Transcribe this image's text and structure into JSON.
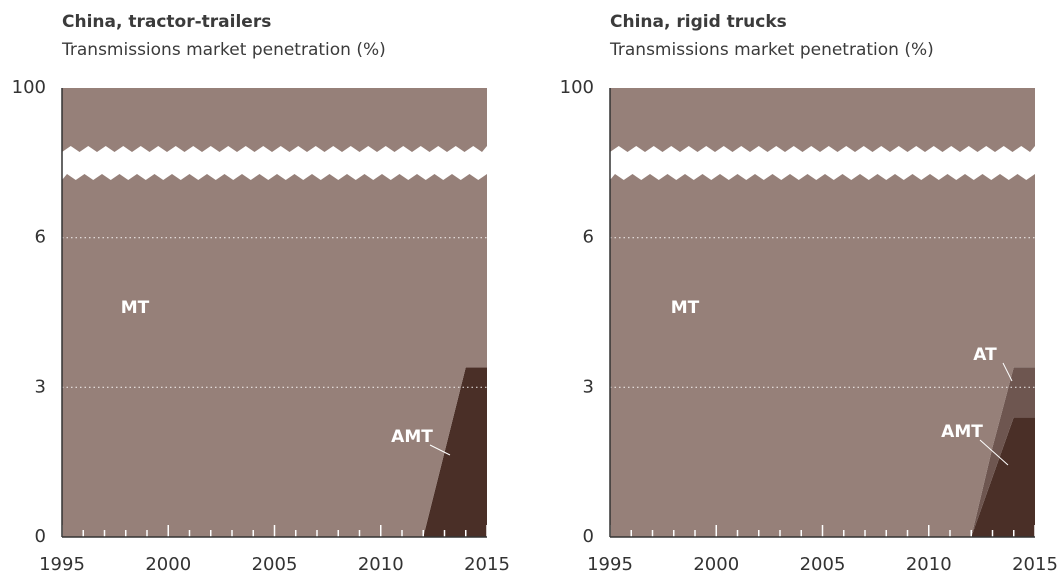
{
  "chart_data": [
    {
      "type": "area",
      "title": "China, tractor-trailers",
      "subtitle": "Transmissions market penetration (%)",
      "x": [
        1995,
        1996,
        1997,
        1998,
        1999,
        2000,
        2001,
        2002,
        2003,
        2004,
        2005,
        2006,
        2007,
        2008,
        2009,
        2010,
        2011,
        2012,
        2013,
        2014,
        2015
      ],
      "xlim": [
        1995,
        2015
      ],
      "xticks": [
        1995,
        2000,
        2005,
        2010,
        2015
      ],
      "ylim": [
        0,
        100
      ],
      "yticks": [
        0,
        3,
        6,
        100
      ],
      "series": [
        {
          "name": "AMT",
          "color": "#4a2f27",
          "values": [
            0,
            0,
            0,
            0,
            0,
            0,
            0,
            0,
            0,
            0,
            0,
            0,
            0,
            0,
            0,
            0,
            0,
            0,
            1.7,
            3.4,
            3.4
          ]
        },
        {
          "name": "MT",
          "color": "#968079",
          "values": [
            100,
            100,
            100,
            100,
            100,
            100,
            100,
            100,
            100,
            100,
            100,
            100,
            100,
            100,
            100,
            100,
            100,
            100,
            98.3,
            96.6,
            96.6
          ]
        }
      ]
    },
    {
      "type": "area",
      "title": "China, rigid trucks",
      "subtitle": "Transmissions market penetration (%)",
      "x": [
        1995,
        1996,
        1997,
        1998,
        1999,
        2000,
        2001,
        2002,
        2003,
        2004,
        2005,
        2006,
        2007,
        2008,
        2009,
        2010,
        2011,
        2012,
        2013,
        2014,
        2015
      ],
      "xlim": [
        1995,
        2015
      ],
      "xticks": [
        1995,
        2000,
        2005,
        2010,
        2015
      ],
      "ylim": [
        0,
        100
      ],
      "yticks": [
        0,
        3,
        6,
        100
      ],
      "series": [
        {
          "name": "AMT",
          "color": "#4a2f27",
          "values": [
            0,
            0,
            0,
            0,
            0,
            0,
            0,
            0,
            0,
            0,
            0,
            0,
            0,
            0,
            0,
            0,
            0,
            0,
            1.2,
            2.4,
            2.4
          ]
        },
        {
          "name": "AT",
          "color": "#6e5650",
          "values": [
            0,
            0,
            0,
            0,
            0,
            0,
            0,
            0,
            0,
            0,
            0,
            0,
            0,
            0,
            0,
            0,
            0,
            0,
            0.6,
            1.0,
            1.0
          ]
        },
        {
          "name": "MT",
          "color": "#968079",
          "values": [
            100,
            100,
            100,
            100,
            100,
            100,
            100,
            100,
            100,
            100,
            100,
            100,
            100,
            100,
            100,
            100,
            100,
            100,
            98.2,
            96.6,
            96.6
          ]
        }
      ]
    }
  ]
}
